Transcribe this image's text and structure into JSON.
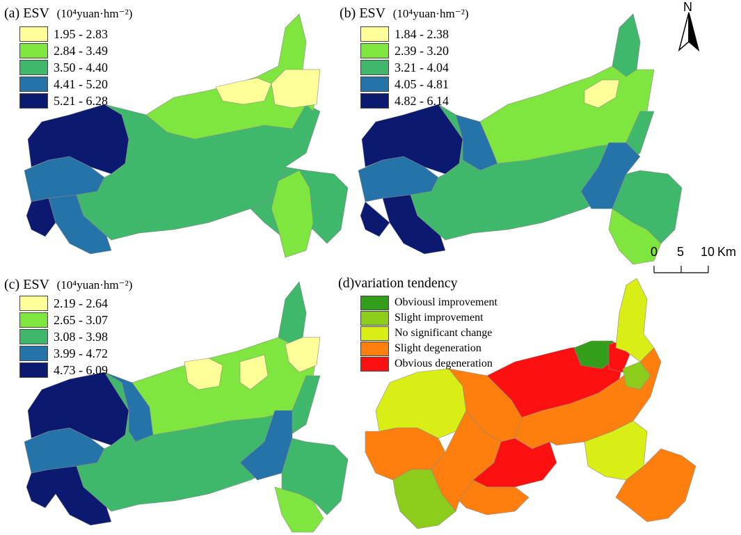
{
  "panels": [
    {
      "id": "a",
      "label": "(a)",
      "title": "ESV",
      "unit": "(10⁴yuan·hm⁻²)",
      "legend": [
        {
          "label": "1.95 - 2.83",
          "color": "#ffff99"
        },
        {
          "label": "2.84 - 3.49",
          "color": "#7fe53f"
        },
        {
          "label": "3.50 - 4.40",
          "color": "#3fb86b"
        },
        {
          "label": "4.41 - 5.20",
          "color": "#2574a9"
        },
        {
          "label": "5.21 - 6.28",
          "color": "#0b1a70"
        }
      ]
    },
    {
      "id": "b",
      "label": "(b)",
      "title": "ESV",
      "unit": "(10⁴yuan·hm⁻²)",
      "legend": [
        {
          "label": "1.84 - 2.38",
          "color": "#ffff99"
        },
        {
          "label": "2.39 - 3.20",
          "color": "#7fe53f"
        },
        {
          "label": "3.21 - 4.04",
          "color": "#3fb86b"
        },
        {
          "label": "4.05 - 4.81",
          "color": "#2574a9"
        },
        {
          "label": "4.82 - 6.14",
          "color": "#0b1a70"
        }
      ]
    },
    {
      "id": "c",
      "label": "(c)",
      "title": "ESV",
      "unit": "(10⁴yuan·hm⁻²)",
      "legend": [
        {
          "label": "2.19 - 2.64",
          "color": "#ffff99"
        },
        {
          "label": "2.65 - 3.07",
          "color": "#7fe53f"
        },
        {
          "label": "3.08 - 3.98",
          "color": "#3fb86b"
        },
        {
          "label": "3.99 - 4.72",
          "color": "#2574a9"
        },
        {
          "label": "4.73 - 6.09",
          "color": "#0b1a70"
        }
      ]
    },
    {
      "id": "d",
      "label": "(d)",
      "title": "variation tendency",
      "unit": "",
      "legend": [
        {
          "label": "Obviousl improvement",
          "color": "#339e1a"
        },
        {
          "label": "Slight improvement",
          "color": "#8ccc1a"
        },
        {
          "label": "No significant change",
          "color": "#d9ee14"
        },
        {
          "label": "Slight degeneration",
          "color": "#ff7f0e"
        },
        {
          "label": "Obvious degeneration",
          "color": "#ff1010"
        }
      ]
    }
  ],
  "north_arrow": {
    "label": "N"
  },
  "scale_bar": {
    "ticks": [
      "0",
      "5",
      "10"
    ],
    "unit": "Km"
  }
}
